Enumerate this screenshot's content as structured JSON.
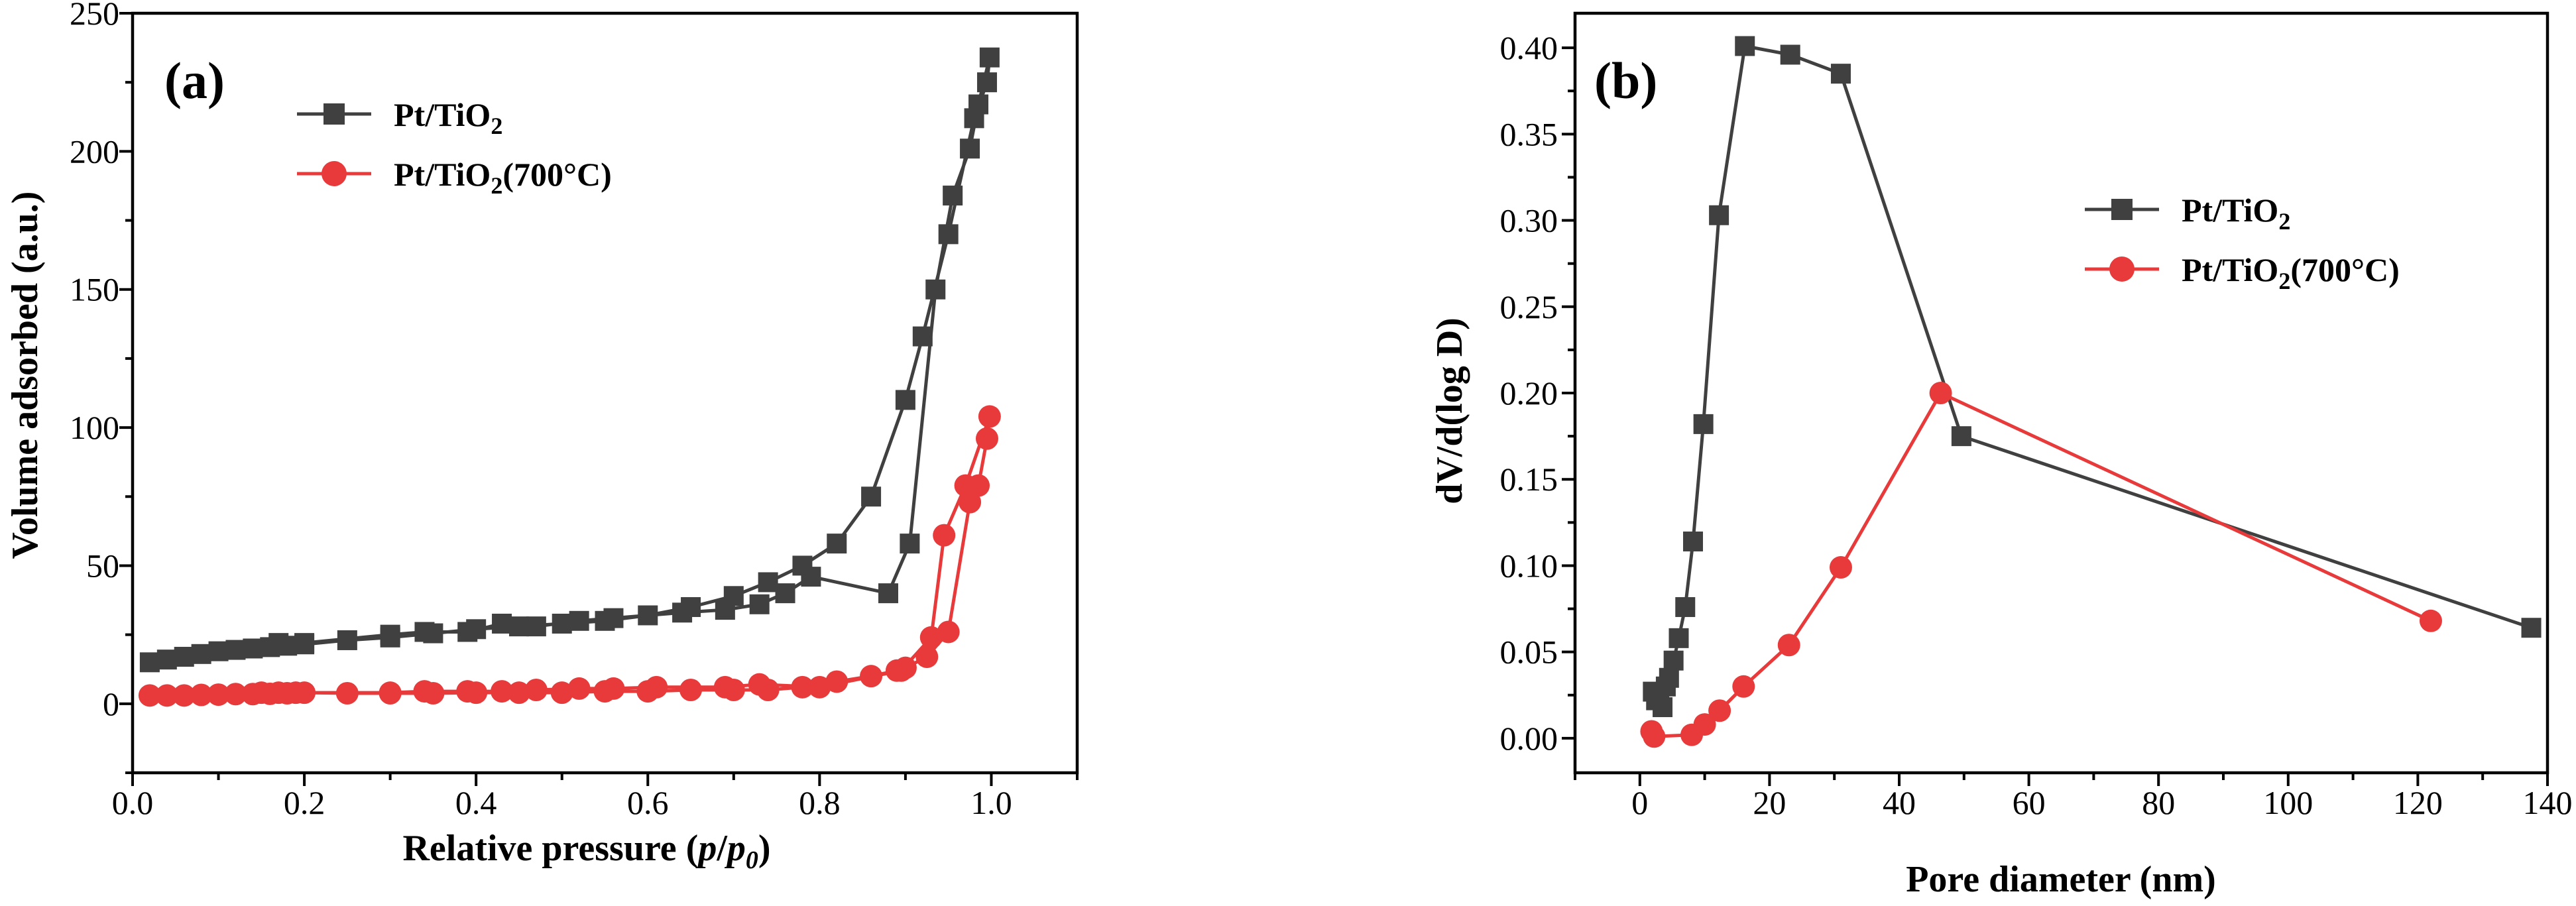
{
  "colors": {
    "gray": "#404040",
    "red": "#e83a3a"
  },
  "chart_data": [
    {
      "type": "line",
      "panel_label": "(a)",
      "xlabel_main": "Relative pressure (",
      "xlabel_italic_p": "p",
      "xlabel_slash": "/",
      "xlabel_italic_p0": "p",
      "xlabel_sub_0": "0",
      "xlabel_close": ")",
      "ylabel": "Volume adsorbed (a.u.)",
      "xlim": [
        0.0,
        1.1
      ],
      "ylim": [
        -25,
        250
      ],
      "xticks": [
        "0.0",
        "0.2",
        "0.4",
        "0.6",
        "0.8",
        "1.0"
      ],
      "yticks": [
        "0",
        "50",
        "100",
        "150",
        "200",
        "250"
      ],
      "legend_position": "top-left",
      "series": [
        {
          "name": "Pt/TiO2",
          "legend_base": "Pt/TiO",
          "legend_sub": "2",
          "legend_suffix": "",
          "color_key": "gray",
          "marker": "square",
          "x": [
            0.02,
            0.04,
            0.06,
            0.08,
            0.1,
            0.12,
            0.14,
            0.16,
            0.18,
            0.2,
            0.25,
            0.3,
            0.35,
            0.4,
            0.45,
            0.5,
            0.55,
            0.6,
            0.65,
            0.7,
            0.74,
            0.78,
            0.82,
            0.86,
            0.9,
            0.92,
            0.95,
            0.98,
            0.995,
            0.998,
            0.985,
            0.975,
            0.955,
            0.935,
            0.905,
            0.88,
            0.79,
            0.76,
            0.73,
            0.69,
            0.64,
            0.56,
            0.52,
            0.47,
            0.43,
            0.39,
            0.34,
            0.3,
            0.2,
            0.17
          ],
          "y": [
            15,
            16,
            17,
            18,
            19,
            19.5,
            20,
            20.5,
            21,
            21.5,
            23,
            24,
            25.5,
            27,
            28,
            29,
            30,
            32,
            35,
            39,
            44,
            50,
            58,
            75,
            110,
            133,
            170,
            212,
            225,
            234,
            217,
            201,
            184,
            150,
            58,
            40,
            46,
            40,
            36,
            34,
            33,
            31,
            30,
            28,
            29,
            26,
            26,
            25,
            22,
            22
          ]
        },
        {
          "name": "Pt/TiO2(700°C)",
          "legend_base": "Pt/TiO",
          "legend_sub": "2",
          "legend_suffix": "(700°C)",
          "color_key": "red",
          "marker": "circle",
          "x": [
            0.02,
            0.04,
            0.06,
            0.08,
            0.1,
            0.12,
            0.14,
            0.16,
            0.18,
            0.2,
            0.25,
            0.3,
            0.35,
            0.4,
            0.45,
            0.5,
            0.55,
            0.6,
            0.65,
            0.7,
            0.74,
            0.78,
            0.82,
            0.86,
            0.89,
            0.9,
            0.925,
            0.95,
            0.975,
            0.985,
            0.995,
            0.998,
            0.97,
            0.945,
            0.93,
            0.895,
            0.8,
            0.73,
            0.69,
            0.61,
            0.56,
            0.52,
            0.47,
            0.43,
            0.39,
            0.34,
            0.3,
            0.19,
            0.15,
            0.17
          ],
          "y": [
            3,
            3,
            3,
            3.2,
            3.3,
            3.5,
            3.5,
            3.6,
            3.8,
            4,
            3.8,
            3.8,
            3.8,
            4,
            4,
            4,
            4.5,
            4.5,
            5,
            5,
            5,
            6,
            8,
            10,
            12,
            13,
            17,
            26,
            73,
            79,
            96,
            104,
            79,
            61,
            24,
            12,
            6,
            7,
            6,
            6,
            5.5,
            5.5,
            5,
            4.5,
            4.5,
            4.5,
            4,
            4,
            4,
            4
          ]
        }
      ]
    },
    {
      "type": "line",
      "panel_label": "(b)",
      "xlabel": "Pore diameter (nm)",
      "ylabel": "dV/d(log D)",
      "xlim": [
        -10,
        140
      ],
      "ylim": [
        -0.02,
        0.42
      ],
      "xticks": [
        "0",
        "20",
        "40",
        "60",
        "80",
        "100",
        "120",
        "140"
      ],
      "yticks": [
        "0.00",
        "0.05",
        "0.10",
        "0.15",
        "0.20",
        "0.25",
        "0.30",
        "0.35",
        "0.40"
      ],
      "legend_position": "top-right",
      "series": [
        {
          "name": "Pt/TiO2",
          "legend_base": "Pt/TiO",
          "legend_sub": "2",
          "legend_suffix": "",
          "color_key": "gray",
          "marker": "square",
          "x": [
            2.0,
            2.5,
            3.0,
            3.5,
            4.0,
            4.5,
            5.2,
            6.0,
            7.0,
            8.2,
            9.8,
            12.2,
            16.2,
            23.2,
            31.0,
            49.6,
            137.5
          ],
          "y": [
            0.027,
            0.022,
            0.025,
            0.018,
            0.03,
            0.035,
            0.045,
            0.058,
            0.076,
            0.114,
            0.182,
            0.303,
            0.401,
            0.396,
            0.385,
            0.175,
            0.064
          ]
        },
        {
          "name": "Pt/TiO2(700°C)",
          "legend_base": "Pt/TiO",
          "legend_sub": "2",
          "legend_suffix": "(700°C)",
          "color_key": "red",
          "marker": "circle",
          "x": [
            1.8,
            2.2,
            8.0,
            10.0,
            12.3,
            16.0,
            23.0,
            31.0,
            46.4,
            122.0
          ],
          "y": [
            0.004,
            0.001,
            0.002,
            0.008,
            0.016,
            0.03,
            0.054,
            0.099,
            0.2,
            0.068
          ]
        }
      ]
    }
  ]
}
